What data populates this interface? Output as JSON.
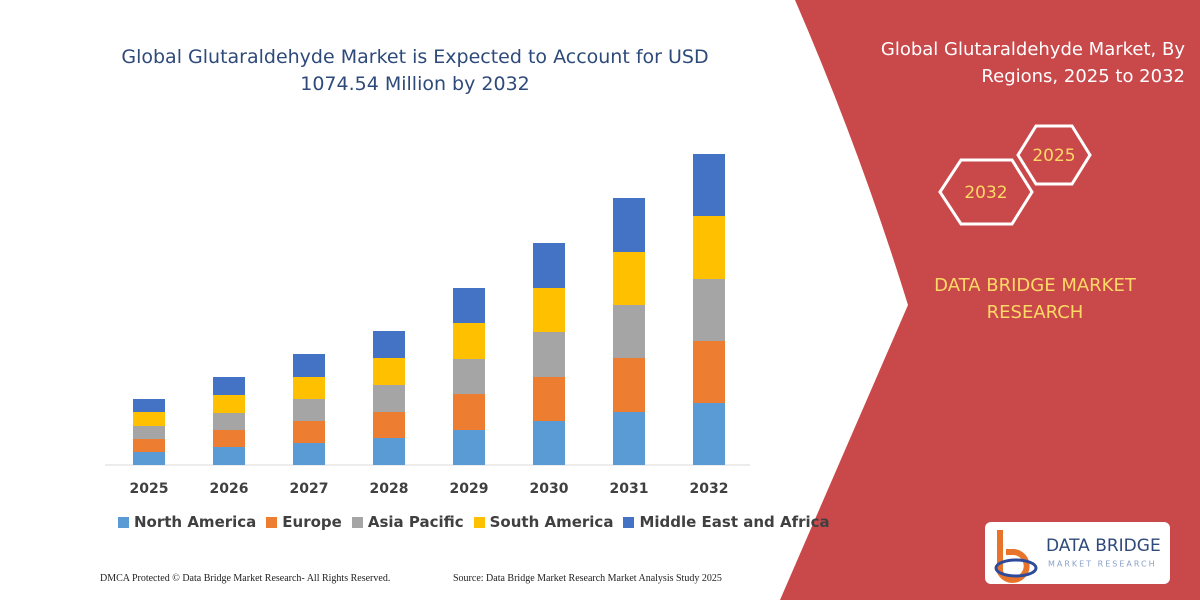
{
  "chart_data": {
    "type": "bar",
    "stacked": true,
    "title": "Global Glutaraldehyde Market is Expected to Account for USD 1074.54 Million by 2032",
    "categories": [
      "2025",
      "2026",
      "2027",
      "2028",
      "2029",
      "2030",
      "2031",
      "2032"
    ],
    "series": [
      {
        "name": "North America",
        "color": "#5b9bd5",
        "values": [
          13,
          18,
          22,
          27,
          35,
          44,
          53,
          62
        ]
      },
      {
        "name": "Europe",
        "color": "#ed7d31",
        "values": [
          13,
          17,
          22,
          26,
          36,
          44,
          54,
          62
        ]
      },
      {
        "name": "Asia Pacific",
        "color": "#a5a5a5",
        "values": [
          13,
          17,
          22,
          27,
          35,
          45,
          53,
          62
        ]
      },
      {
        "name": "South America",
        "color": "#ffc000",
        "values": [
          14,
          18,
          22,
          27,
          36,
          44,
          53,
          63
        ]
      },
      {
        "name": "Middle East and Africa",
        "color": "#4472c4",
        "values": [
          13,
          18,
          23,
          27,
          35,
          45,
          54,
          62
        ]
      }
    ],
    "ylim": [
      0,
      320
    ],
    "grid": false,
    "legend": "bottom"
  },
  "panel": {
    "title": "Global Glutaraldehyde Market, By Regions, 2025 to 2032",
    "hexagons": [
      "2025",
      "2032"
    ],
    "brand": "DATA BRIDGE MARKET RESEARCH"
  },
  "logo": {
    "name": "DATA BRIDGE",
    "tagline": "MARKET RESEARCH"
  },
  "footer": {
    "left": "DMCA Protected © Data Bridge Market Research- All Rights Reserved.",
    "right": "Source: Data Bridge Market Research Market Analysis Study 2025"
  }
}
